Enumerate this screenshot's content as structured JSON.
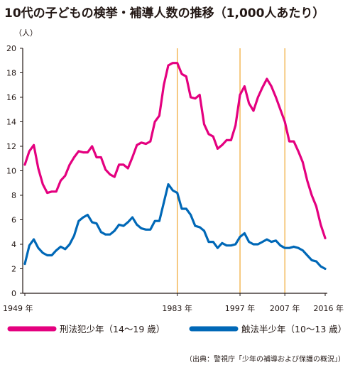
{
  "chart_data": {
    "type": "line",
    "title": "10代の子どもの検挙・補導人数の推移（1,000人あたり）",
    "ylabel": "（人）",
    "ylim": [
      0,
      20
    ],
    "yticks": [
      0,
      2,
      4,
      6,
      8,
      10,
      12,
      14,
      16,
      18,
      20
    ],
    "xlim": [
      1949,
      2016
    ],
    "xticks": [
      {
        "value": 1949,
        "label": "1949 年"
      },
      {
        "value": 1983,
        "label": "1983 年"
      },
      {
        "value": 1997,
        "label": "1997 年"
      },
      {
        "value": 2007,
        "label": "2007 年"
      },
      {
        "value": 2016,
        "label": "2016 年"
      }
    ],
    "reference_lines": [
      1983,
      1997,
      2007
    ],
    "grid": false,
    "legend_position": "bottom",
    "source": "（出典：警視庁「少年の補導および保護の概況」）",
    "x": [
      1949,
      1950,
      1951,
      1952,
      1953,
      1954,
      1955,
      1956,
      1957,
      1958,
      1959,
      1960,
      1961,
      1962,
      1963,
      1964,
      1965,
      1966,
      1967,
      1968,
      1969,
      1970,
      1971,
      1972,
      1973,
      1974,
      1975,
      1976,
      1977,
      1978,
      1979,
      1980,
      1981,
      1982,
      1983,
      1984,
      1985,
      1986,
      1987,
      1988,
      1989,
      1990,
      1991,
      1992,
      1993,
      1994,
      1995,
      1996,
      1997,
      1998,
      1999,
      2000,
      2001,
      2002,
      2003,
      2004,
      2005,
      2006,
      2007,
      2008,
      2009,
      2010,
      2011,
      2012,
      2013,
      2014,
      2015,
      2016
    ],
    "series": [
      {
        "name": "刑法犯少年（14〜19 歳）",
        "color": "#e4007f",
        "values": [
          10.5,
          11.6,
          12.1,
          10.2,
          8.9,
          8.2,
          8.3,
          8.3,
          9.2,
          9.6,
          10.5,
          11.1,
          11.6,
          11.5,
          11.5,
          12.0,
          11.1,
          11.1,
          10.1,
          9.7,
          9.5,
          10.5,
          10.5,
          10.2,
          11.1,
          12.1,
          12.3,
          12.2,
          12.4,
          14.0,
          14.5,
          17.0,
          18.6,
          18.8,
          18.8,
          17.9,
          17.7,
          16.0,
          15.9,
          16.2,
          13.8,
          13.0,
          12.8,
          11.8,
          12.1,
          12.5,
          12.5,
          13.7,
          16.2,
          16.9,
          15.5,
          14.9,
          16.0,
          16.8,
          17.5,
          16.9,
          16.0,
          15.0,
          14.0,
          12.4,
          12.4,
          11.6,
          10.7,
          9.2,
          8.0,
          7.1,
          5.6,
          4.5
        ]
      },
      {
        "name": "触法半少年（10〜13 歳）",
        "color": "#0068b7",
        "values": [
          2.4,
          3.9,
          4.4,
          3.7,
          3.3,
          3.1,
          3.1,
          3.5,
          3.8,
          3.6,
          4.0,
          4.7,
          5.9,
          6.2,
          6.4,
          5.8,
          5.7,
          5.0,
          4.8,
          4.8,
          5.1,
          5.6,
          5.5,
          5.8,
          6.2,
          5.6,
          5.3,
          5.2,
          5.2,
          5.9,
          5.9,
          7.4,
          8.9,
          8.4,
          8.2,
          6.9,
          6.9,
          6.4,
          5.5,
          5.4,
          5.1,
          4.2,
          4.2,
          3.7,
          4.1,
          3.9,
          3.9,
          4.0,
          4.6,
          4.9,
          4.2,
          4.0,
          4.0,
          4.2,
          4.4,
          4.2,
          4.3,
          3.9,
          3.7,
          3.7,
          3.8,
          3.7,
          3.5,
          3.1,
          2.7,
          2.6,
          2.2,
          2.0
        ]
      }
    ]
  }
}
